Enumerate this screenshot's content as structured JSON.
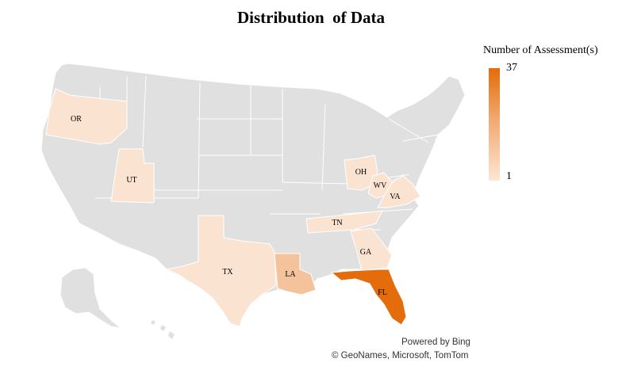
{
  "title": "Distribution  of Data",
  "legend": {
    "title": "Number of Assessment(s)",
    "max": "37",
    "min": "1",
    "colors": {
      "high": "#e46c0a",
      "low": "#fde6d2"
    }
  },
  "credits": {
    "line1": "Powered by Bing",
    "line2": "© GeoNames, Microsoft, TomTom"
  },
  "colors": {
    "no_data": "#e0e0e0",
    "border": "#ffffff"
  },
  "states": [
    {
      "label": "OR",
      "color": "#fbe3d2"
    },
    {
      "label": "UT",
      "color": "#fbe3d2"
    },
    {
      "label": "TX",
      "color": "#fbe3d2"
    },
    {
      "label": "LA",
      "color": "#f4c29b"
    },
    {
      "label": "OH",
      "color": "#fbe3d2"
    },
    {
      "label": "WV",
      "color": "#fbe3d2"
    },
    {
      "label": "VA",
      "color": "#fbe3d2"
    },
    {
      "label": "TN",
      "color": "#fbe3d2"
    },
    {
      "label": "GA",
      "color": "#fbe3d2"
    },
    {
      "label": "FL",
      "color": "#e46c0a"
    }
  ]
}
